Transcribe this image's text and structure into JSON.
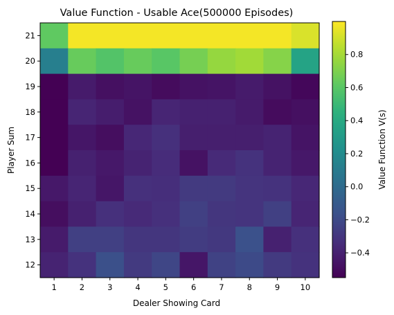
{
  "chart_data": {
    "type": "heatmap",
    "title": "Value Function - Usable Ace(500000 Episodes)",
    "xlabel": "Dealer Showing Card",
    "ylabel": "Player Sum",
    "x_ticks": [
      "1",
      "2",
      "3",
      "4",
      "5",
      "6",
      "7",
      "8",
      "9",
      "10"
    ],
    "y_ticks": [
      "12",
      "13",
      "14",
      "15",
      "16",
      "17",
      "18",
      "19",
      "20",
      "21"
    ],
    "colormap": "viridis",
    "colorbar_label": "Value Function V(s)",
    "colorbar_range": [
      -0.55,
      1.0
    ],
    "colorbar_ticks": [
      "−0.4",
      "−0.2",
      "0.0",
      "0.2",
      "0.4",
      "0.6",
      "0.8"
    ],
    "colorbar_tick_values": [
      -0.4,
      -0.2,
      0.0,
      0.2,
      0.4,
      0.6,
      0.8
    ],
    "grid": false,
    "rows": [
      {
        "player_sum": 21,
        "values": [
          0.62,
          0.98,
          0.98,
          0.98,
          0.98,
          0.98,
          0.98,
          0.98,
          0.98,
          0.92
        ]
      },
      {
        "player_sum": 20,
        "values": [
          0.12,
          0.64,
          0.58,
          0.64,
          0.6,
          0.68,
          0.76,
          0.79,
          0.72,
          0.36
        ]
      },
      {
        "player_sum": 19,
        "values": [
          -0.55,
          -0.43,
          -0.48,
          -0.46,
          -0.5,
          -0.47,
          -0.46,
          -0.43,
          -0.47,
          -0.52
        ]
      },
      {
        "player_sum": 18,
        "values": [
          -0.55,
          -0.38,
          -0.42,
          -0.47,
          -0.38,
          -0.4,
          -0.4,
          -0.43,
          -0.5,
          -0.48
        ]
      },
      {
        "player_sum": 17,
        "values": [
          -0.55,
          -0.45,
          -0.49,
          -0.37,
          -0.33,
          -0.41,
          -0.41,
          -0.41,
          -0.39,
          -0.46
        ]
      },
      {
        "player_sum": 16,
        "values": [
          -0.55,
          -0.4,
          -0.44,
          -0.39,
          -0.35,
          -0.47,
          -0.36,
          -0.32,
          -0.39,
          -0.44
        ]
      },
      {
        "player_sum": 15,
        "values": [
          -0.44,
          -0.38,
          -0.45,
          -0.33,
          -0.34,
          -0.28,
          -0.28,
          -0.31,
          -0.32,
          -0.37
        ]
      },
      {
        "player_sum": 14,
        "values": [
          -0.49,
          -0.4,
          -0.33,
          -0.36,
          -0.33,
          -0.25,
          -0.3,
          -0.31,
          -0.25,
          -0.38
        ]
      },
      {
        "player_sum": 13,
        "values": [
          -0.43,
          -0.25,
          -0.25,
          -0.3,
          -0.3,
          -0.27,
          -0.29,
          -0.16,
          -0.4,
          -0.33
        ]
      },
      {
        "player_sum": 12,
        "values": [
          -0.39,
          -0.32,
          -0.17,
          -0.28,
          -0.22,
          -0.45,
          -0.24,
          -0.2,
          -0.28,
          -0.32
        ]
      }
    ]
  }
}
